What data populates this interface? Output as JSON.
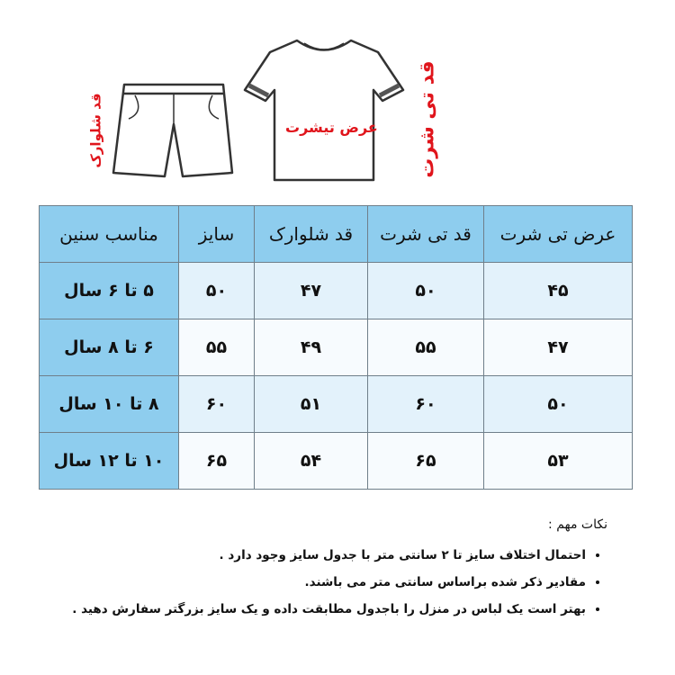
{
  "illustration": {
    "shirt_width_label": "عرض تیشرت",
    "shirt_length_label": "قد تی شرت",
    "shorts_length_label": "قد شلوارک",
    "label_color": "#e0141b"
  },
  "table": {
    "headers": [
      "عرض تی شرت",
      "قد تی شرت",
      "قد شلوارک",
      "سایز",
      "مناسب سنین"
    ],
    "rows": [
      [
        "۴۵",
        "۵۰",
        "۴۷",
        "۵۰",
        "۵ تا ۶ سال"
      ],
      [
        "۴۷",
        "۵۵",
        "۴۹",
        "۵۵",
        "۶ تا ۸ سال"
      ],
      [
        "۵۰",
        "۶۰",
        "۵۱",
        "۶۰",
        "۸ تا ۱۰ سال"
      ],
      [
        "۵۳",
        "۶۵",
        "۵۴",
        "۶۵",
        "۱۰ تا ۱۲ سال"
      ]
    ],
    "header_color": "#8ecdee"
  },
  "notes": {
    "title": "نکات مهم :",
    "items": [
      "احتمال اختلاف سایز تا ۲ سانتی متر با جدول سایز وجود دارد .",
      "مقادیر ذکر شده براساس سانتی متر می باشند.",
      "بهتر است یک لباس در منزل را باجدول مطابقت داده و یک سایز بزرگتر سفارش دهید ."
    ]
  }
}
